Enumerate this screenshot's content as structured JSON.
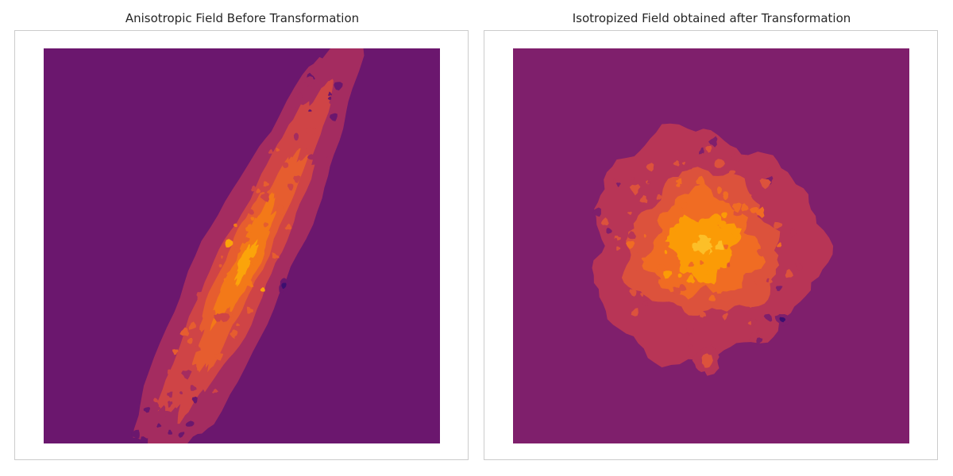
{
  "chart_data": [
    {
      "type": "heatmap",
      "subtype": "filled-contour",
      "title": "Anisotropic Field Before Transformation",
      "xlabel": "",
      "ylabel": "",
      "axes_visible": false,
      "grid": false,
      "colormap": "inferno",
      "level_colors": [
        "#3b0f70",
        "#6b176e",
        "#a42c60",
        "#cf4446",
        "#e65d2f",
        "#f37918",
        "#fba40a",
        "#fdd644"
      ],
      "background_color": "#6b176e",
      "structure": {
        "shape": "elongated diagonal band",
        "orientation": "from lower-left to upper-right",
        "peak": "center of the band"
      }
    },
    {
      "type": "heatmap",
      "subtype": "filled-contour",
      "title": "Isotropized Field obtained after Transformation",
      "xlabel": "",
      "ylabel": "",
      "axes_visible": false,
      "grid": false,
      "colormap": "inferno",
      "level_colors": [
        "#3b0f70",
        "#7f1f6c",
        "#b83556",
        "#dc523c",
        "#f06c23",
        "#fb9b06",
        "#fcbf28",
        "#fde268"
      ],
      "background_color": "#7f1f6c",
      "structure": {
        "shape": "roughly circular blob",
        "orientation": "isotropic",
        "peak": "center slightly left of middle"
      }
    }
  ]
}
